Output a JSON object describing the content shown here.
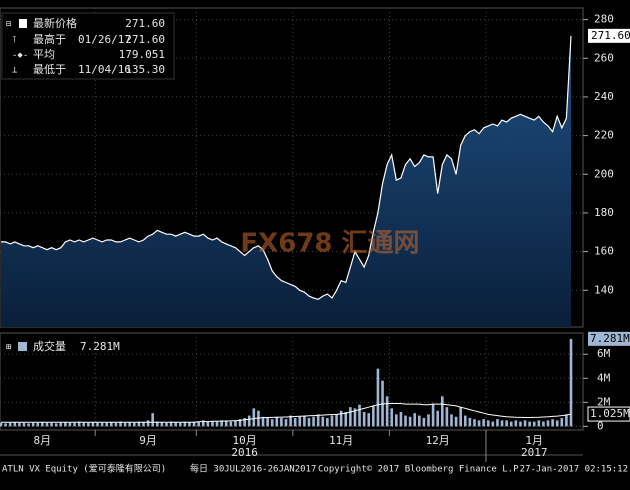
{
  "chart_data": {
    "type": "area",
    "grid": true,
    "categories": [
      null,
      null,
      null,
      null,
      null,
      null,
      null,
      null,
      null,
      "8月",
      null,
      null,
      null,
      null,
      null,
      null,
      null,
      null,
      null,
      null,
      null,
      null,
      null,
      null,
      null,
      null,
      null,
      null,
      null,
      null,
      null,
      null,
      "9月",
      null,
      null,
      null,
      null,
      null,
      null,
      null,
      null,
      null,
      null,
      null,
      null,
      null,
      null,
      null,
      null,
      null,
      null,
      null,
      null,
      "10月",
      null,
      null,
      null,
      null,
      null,
      null,
      null,
      null,
      null,
      null,
      null,
      null,
      null,
      null,
      null,
      null,
      null,
      null,
      null,
      null,
      "11月",
      null,
      null,
      null,
      null,
      null,
      null,
      null,
      null,
      null,
      null,
      null,
      null,
      null,
      null,
      null,
      null,
      null,
      null,
      null,
      null,
      "12月",
      null,
      null,
      null,
      null,
      null,
      null,
      null,
      null,
      null,
      null,
      null,
      null,
      null,
      null,
      null,
      null,
      null,
      null,
      null,
      null,
      "1月",
      null,
      null,
      null,
      null,
      null,
      null,
      null,
      null
    ],
    "x_years": [
      "2016",
      "2017"
    ],
    "ylim": [
      121,
      286
    ],
    "yticks": [
      140,
      160,
      180,
      200,
      220,
      240,
      260,
      280
    ],
    "y2lim": [
      -0.3,
      7.6
    ],
    "y2ticks": [
      0,
      {
        "value": 2,
        "label": "2M"
      },
      {
        "value": 4,
        "label": "4M"
      },
      {
        "value": 6,
        "label": "6M"
      }
    ],
    "series": [
      {
        "name": "最新价格",
        "color": "#ffffff",
        "latest_label": "271.60",
        "values": [
          165,
          165,
          164,
          165,
          164,
          163,
          163,
          162,
          163,
          162,
          161,
          162,
          161,
          162,
          165,
          166,
          165,
          166,
          165,
          166,
          167,
          166,
          165,
          166,
          166,
          165,
          165,
          166,
          167,
          166,
          165,
          166,
          168,
          169,
          171,
          170,
          169,
          169,
          168,
          169,
          170,
          169,
          168,
          168,
          169,
          167,
          166,
          167,
          165,
          164,
          163,
          162,
          160,
          158,
          160,
          162,
          163,
          161,
          156,
          150,
          147,
          145,
          144,
          143,
          142,
          140,
          139,
          137,
          136,
          135.3,
          137,
          138,
          136,
          140,
          145,
          144,
          152,
          160,
          156,
          152,
          158,
          170,
          180,
          195,
          205,
          210,
          197,
          198,
          205,
          208,
          204,
          206,
          210,
          209,
          209,
          190,
          205,
          210,
          208,
          200,
          215,
          220,
          222,
          223,
          221,
          224,
          225,
          226,
          225,
          228,
          227,
          229,
          230,
          231,
          230,
          229,
          228,
          230,
          227,
          225,
          222,
          230,
          224,
          229,
          271.6
        ]
      },
      {
        "name": "成交量",
        "type": "bar",
        "axis": "y2",
        "color": "#9fb7d4",
        "latest_label": "7.281M",
        "values": [
          0.3,
          0.25,
          0.3,
          0.35,
          0.3,
          0.3,
          0.25,
          0.3,
          0.3,
          0.35,
          0.3,
          0.3,
          0.25,
          0.3,
          0.35,
          0.3,
          0.3,
          0.4,
          0.3,
          0.3,
          0.35,
          0.3,
          0.3,
          0.3,
          0.35,
          0.3,
          0.4,
          0.3,
          0.35,
          0.3,
          0.4,
          0.35,
          0.5,
          1.1,
          0.4,
          0.35,
          0.3,
          0.4,
          0.35,
          0.3,
          0.4,
          0.35,
          0.4,
          0.4,
          0.5,
          0.4,
          0.45,
          0.4,
          0.5,
          0.45,
          0.4,
          0.5,
          0.6,
          0.7,
          0.9,
          1.5,
          1.3,
          0.8,
          0.7,
          0.6,
          0.8,
          0.7,
          0.6,
          0.9,
          0.7,
          0.8,
          0.9,
          0.7,
          0.8,
          1.0,
          0.8,
          0.7,
          0.9,
          1.0,
          1.3,
          1.2,
          1.6,
          1.5,
          1.8,
          1.2,
          1.1,
          1.7,
          4.8,
          3.8,
          2.5,
          1.5,
          1.0,
          1.2,
          0.9,
          0.8,
          1.1,
          0.9,
          0.7,
          1.0,
          1.9,
          1.3,
          2.5,
          1.6,
          1.0,
          0.8,
          1.6,
          0.9,
          0.7,
          0.6,
          0.5,
          0.6,
          0.5,
          0.4,
          0.6,
          0.5,
          0.5,
          0.4,
          0.5,
          0.4,
          0.5,
          0.4,
          0.4,
          0.5,
          0.4,
          0.5,
          0.6,
          0.5,
          0.7,
          1.0,
          7.281
        ]
      },
      {
        "type": "line",
        "axis": "y2",
        "color": "#ffffff",
        "latest_label": "1.025M",
        "values": [
          0.35,
          0.35,
          0.35,
          0.35,
          0.35,
          0.35,
          0.35,
          0.35,
          0.35,
          0.35,
          0.35,
          0.35,
          0.35,
          0.35,
          0.35,
          0.35,
          0.35,
          0.35,
          0.35,
          0.35,
          0.35,
          0.35,
          0.35,
          0.35,
          0.35,
          0.35,
          0.35,
          0.35,
          0.35,
          0.35,
          0.35,
          0.35,
          0.35,
          0.35,
          0.35,
          0.35,
          0.35,
          0.35,
          0.35,
          0.35,
          0.35,
          0.35,
          0.35,
          0.38,
          0.4,
          0.4,
          0.42,
          0.42,
          0.44,
          0.45,
          0.46,
          0.47,
          0.5,
          0.55,
          0.6,
          0.65,
          0.7,
          0.72,
          0.74,
          0.75,
          0.76,
          0.77,
          0.78,
          0.8,
          0.82,
          0.84,
          0.86,
          0.88,
          0.9,
          0.92,
          0.94,
          0.96,
          0.98,
          1.0,
          1.05,
          1.1,
          1.2,
          1.3,
          1.4,
          1.5,
          1.6,
          1.7,
          1.8,
          1.85,
          1.9,
          1.9,
          1.9,
          1.9,
          1.85,
          1.85,
          1.85,
          1.85,
          1.8,
          1.8,
          1.85,
          1.85,
          1.85,
          1.8,
          1.75,
          1.7,
          1.6,
          1.5,
          1.4,
          1.3,
          1.2,
          1.1,
          1.0,
          0.95,
          0.9,
          0.85,
          0.8,
          0.78,
          0.76,
          0.75,
          0.74,
          0.74,
          0.75,
          0.76,
          0.78,
          0.8,
          0.83,
          0.86,
          0.9,
          0.95,
          1.025
        ]
      }
    ],
    "legend": [
      {
        "label": "最高于",
        "date": "01/26/17",
        "value": "271.60"
      },
      {
        "label": "平均",
        "value": "179.051"
      },
      {
        "label": "最低于",
        "date": "11/04/16",
        "value": "135.30"
      }
    ],
    "watermark": "FX678 汇通网",
    "footer": [
      "ATLN VX Equity (爱可泰隆有限公司)",
      "每日 30JUL2016-26JAN2017",
      "Copyright© 2017 Bloomberg Finance L.P.",
      "27-Jan-2017 02:15:12"
    ]
  }
}
